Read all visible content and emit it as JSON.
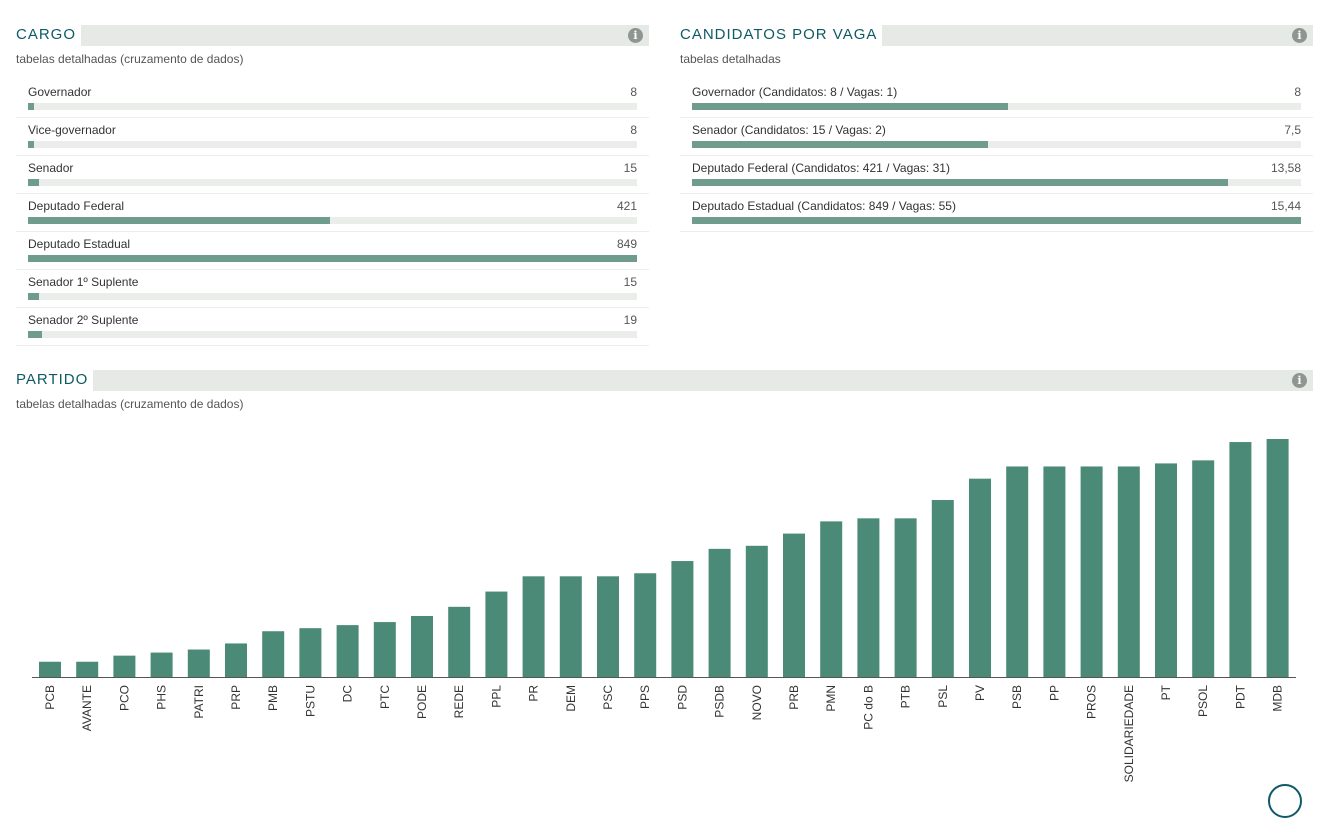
{
  "cargo": {
    "title": "CARGO",
    "subtitle": "tabelas detalhadas (cruzamento de dados)",
    "items": [
      {
        "label": "Governador",
        "value": 8
      },
      {
        "label": "Vice-governador",
        "value": 8
      },
      {
        "label": "Senador",
        "value": 15
      },
      {
        "label": "Deputado Federal",
        "value": 421
      },
      {
        "label": "Deputado Estadual",
        "value": 849
      },
      {
        "label": "Senador 1º Suplente",
        "value": 15
      },
      {
        "label": "Senador 2º Suplente",
        "value": 19
      }
    ]
  },
  "vagas": {
    "title": "CANDIDATOS POR VAGA",
    "subtitle": "tabelas detalhadas",
    "items": [
      {
        "label": "Governador (Candidatos: 8 / Vagas: 1)",
        "display": "8",
        "value": 8
      },
      {
        "label": "Senador (Candidatos: 15 / Vagas: 2)",
        "display": "7,5",
        "value": 7.5
      },
      {
        "label": "Deputado Federal (Candidatos: 421 / Vagas: 31)",
        "display": "13,58",
        "value": 13.58
      },
      {
        "label": "Deputado Estadual (Candidatos: 849 / Vagas: 55)",
        "display": "15,44",
        "value": 15.44
      }
    ]
  },
  "partido": {
    "title": "PARTIDO",
    "subtitle": "tabelas detalhadas (cruzamento de dados)"
  },
  "info_icon": "info-icon",
  "colors": {
    "bar": "#4a8a76",
    "hbar": "#6f9c8c",
    "track": "#ebedeb",
    "title": "#0e5a66",
    "header_bg": "#e6eae6"
  },
  "chart_data": {
    "type": "bar",
    "categories": [
      "PCB",
      "AVANTE",
      "PCO",
      "PHS",
      "PATRI",
      "PRP",
      "PMB",
      "PSTU",
      "DC",
      "PTC",
      "PODE",
      "REDE",
      "PPL",
      "PR",
      "DEM",
      "PSC",
      "PPS",
      "PSD",
      "PSDB",
      "NOVO",
      "PRB",
      "PMN",
      "PC do B",
      "PTB",
      "PSL",
      "PV",
      "PSB",
      "PP",
      "PROS",
      "SOLIDARIEDADE",
      "PT",
      "PSOL",
      "PDT",
      "MDB"
    ],
    "values": [
      5,
      5,
      7,
      8,
      9,
      11,
      15,
      16,
      17,
      18,
      20,
      23,
      28,
      33,
      33,
      33,
      34,
      38,
      42,
      43,
      47,
      51,
      52,
      52,
      58,
      65,
      69,
      69,
      69,
      69,
      70,
      71,
      77,
      78
    ],
    "ylim": [
      0,
      78
    ],
    "title": "",
    "xlabel": "",
    "ylabel": ""
  }
}
